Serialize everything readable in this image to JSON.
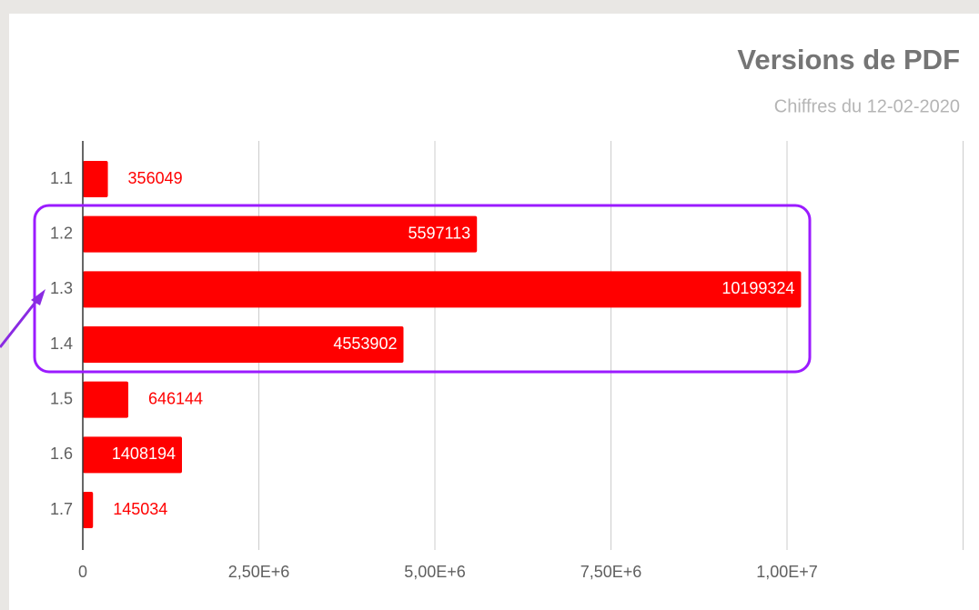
{
  "chart_data": {
    "type": "bar",
    "orientation": "horizontal",
    "title": "Versions de PDF",
    "subtitle": "Chiffres du 12-02-2020",
    "categories": [
      "1.1",
      "1.2",
      "1.3",
      "1.4",
      "1.5",
      "1.6",
      "1.7"
    ],
    "values": [
      356049,
      5597113,
      10199324,
      4553902,
      646144,
      1408194,
      145034
    ],
    "color": "#ff0000",
    "xlim": [
      0,
      12500000
    ],
    "xticks": [
      0,
      {
        "value": 2500000,
        "label": "2,50E+6"
      },
      {
        "value": 5000000,
        "label": "5,00E+6"
      },
      {
        "value": 7500000,
        "label": "7,50E+6"
      },
      {
        "value": 10000000,
        "label": "1,00E+7"
      }
    ],
    "grid": true
  }
}
